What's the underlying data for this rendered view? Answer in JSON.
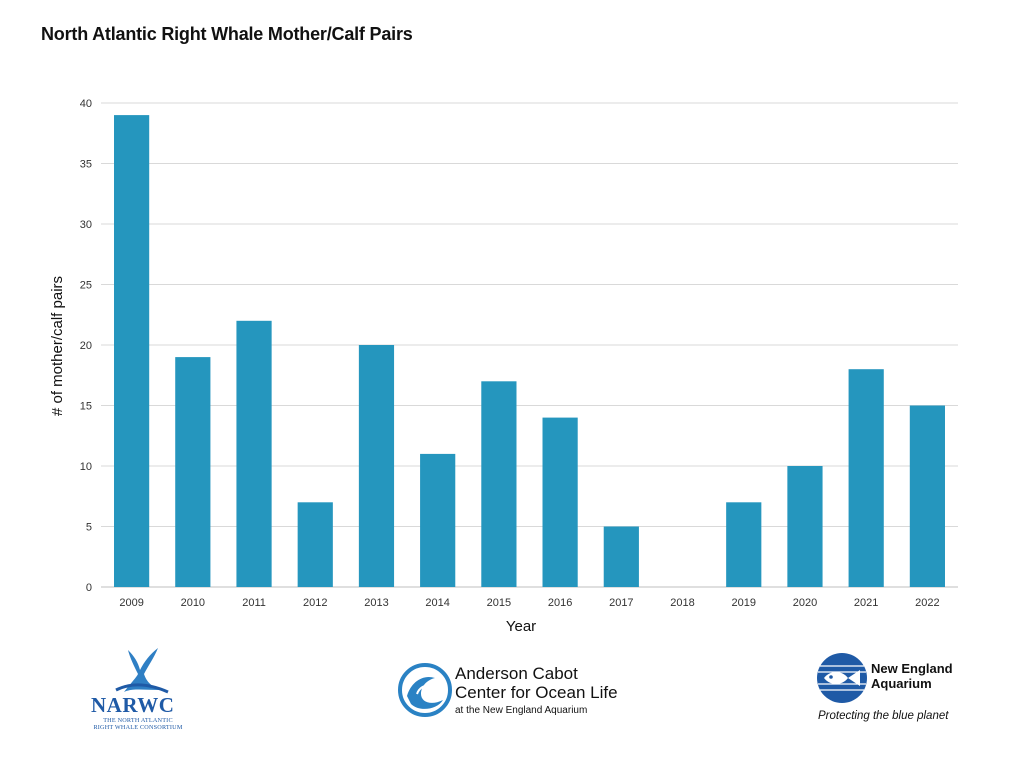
{
  "chart_data": {
    "type": "bar",
    "title": "North Atlantic Right Whale Mother/Calf Pairs",
    "xlabel": "Year",
    "ylabel": "# of mother/calf pairs",
    "categories": [
      "2009",
      "2010",
      "2011",
      "2012",
      "2013",
      "2014",
      "2015",
      "2016",
      "2017",
      "2018",
      "2019",
      "2020",
      "2021",
      "2022"
    ],
    "values": [
      39,
      19,
      22,
      7,
      20,
      11,
      17,
      14,
      5,
      0,
      7,
      10,
      18,
      15
    ],
    "ylim": [
      0,
      40
    ],
    "yticks": [
      0,
      5,
      10,
      15,
      20,
      25,
      30,
      35,
      40
    ],
    "grid": true,
    "legend": "none",
    "bar_color": "#2596be",
    "grid_color": "#d9d9d9"
  },
  "logos": {
    "narwc": {
      "acronym": "NARWC",
      "line1": "THE NORTH ATLANTIC",
      "line2": "RIGHT WHALE CONSORTIUM",
      "icon": "whale-tail-icon",
      "color": "#1f5aa6"
    },
    "acc": {
      "line1": "Anderson Cabot",
      "line2": "Center for Ocean Life",
      "line3": "at the New England Aquarium",
      "icon": "wave-circle-icon",
      "color": "#2a82c4"
    },
    "nea": {
      "line1": "New England",
      "line2": "Aquarium",
      "tagline": "Protecting the blue planet",
      "icon": "fish-circle-icon",
      "color": "#1f5aa6"
    }
  }
}
